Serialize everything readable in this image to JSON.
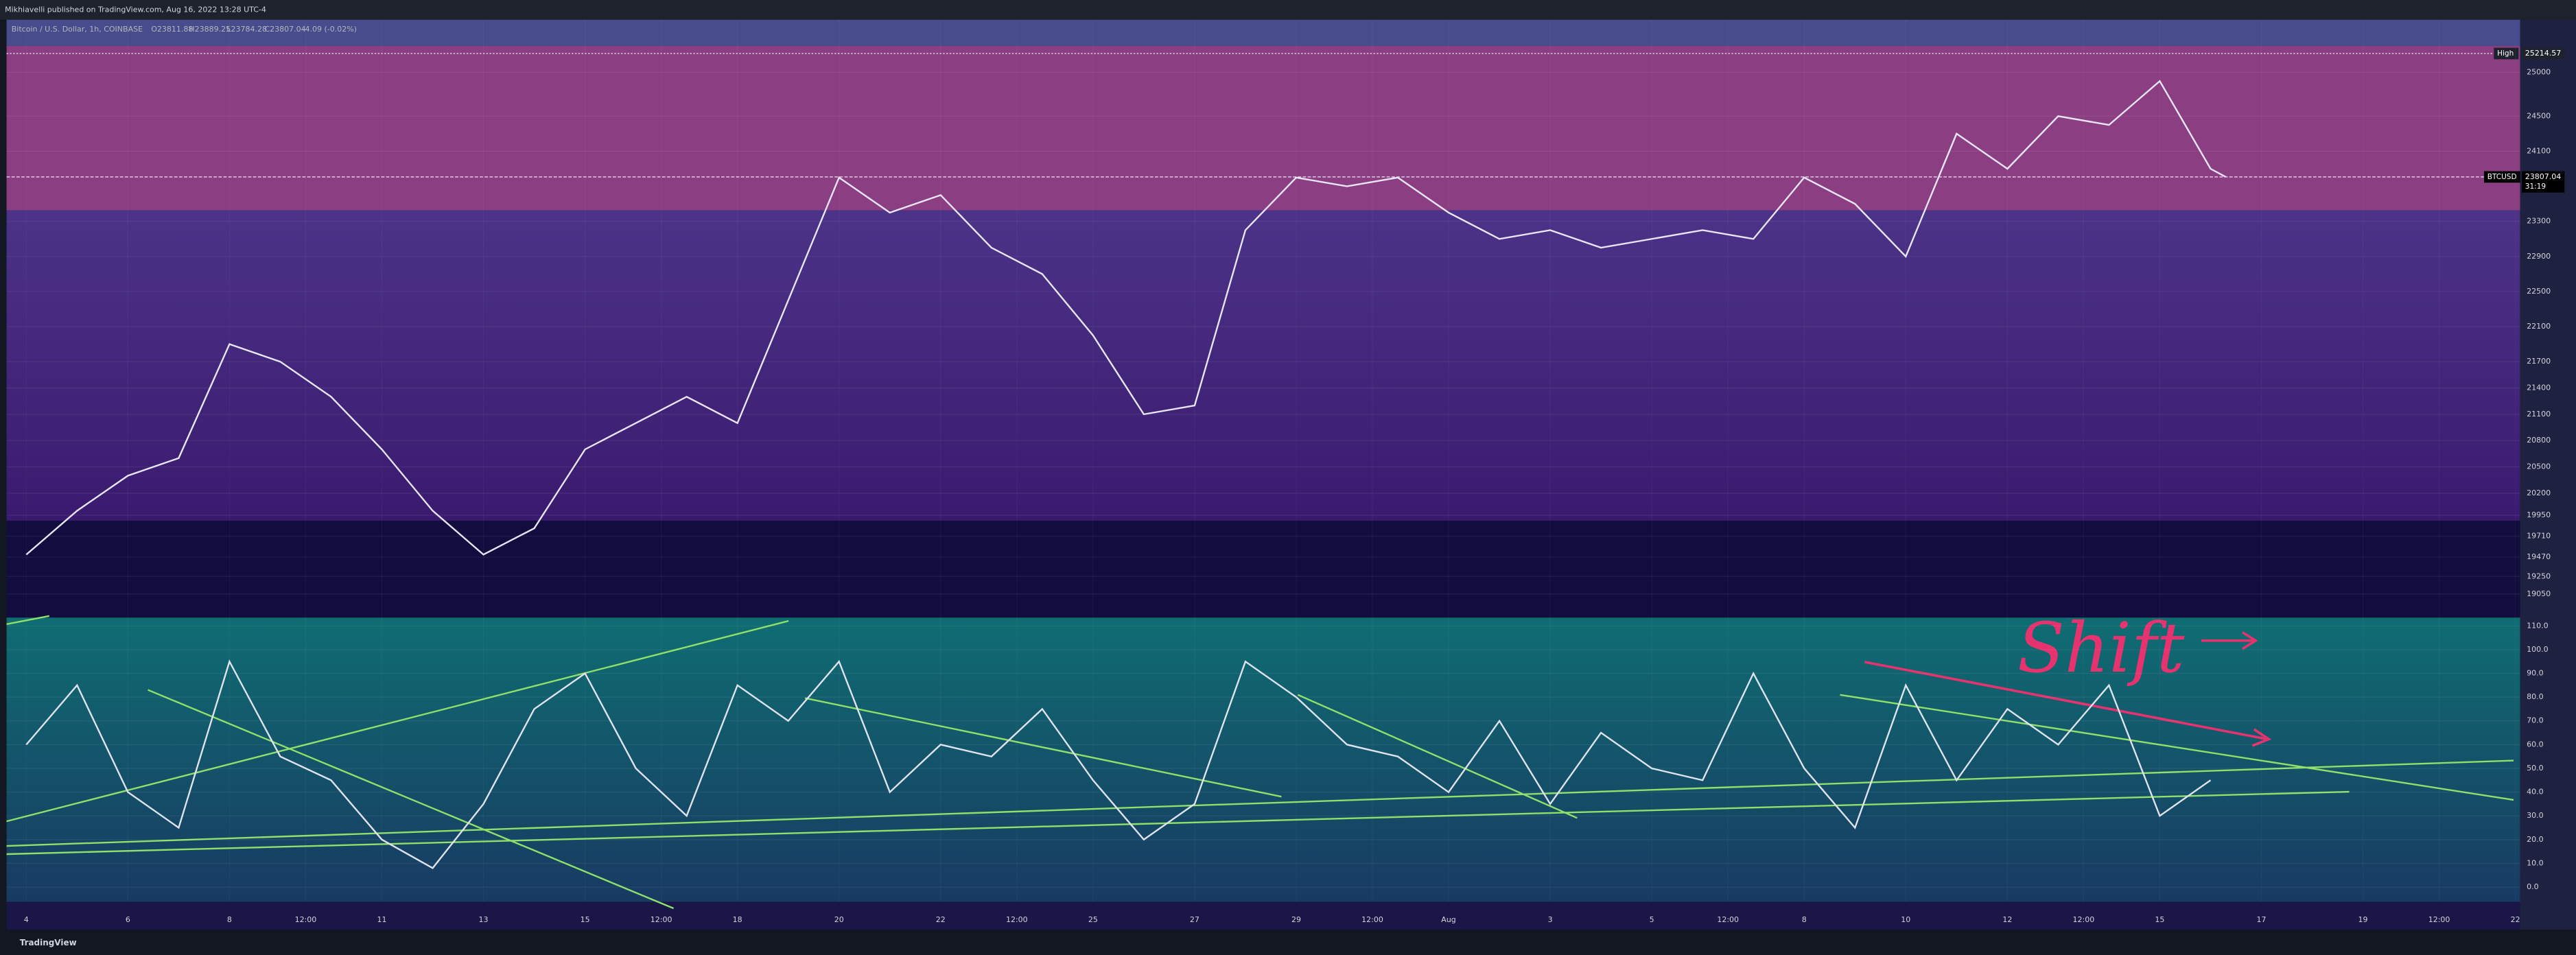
{
  "header": {
    "text": "Mikhiavelli published on TradingView.com, Aug 16, 2022 13:28 UTC-4"
  },
  "legend": {
    "symbol": "Bitcoin / U.S. Dollar, 1h, COINBASE",
    "open": "O23811.88",
    "high": "H23889.25",
    "low": "L23784.28",
    "close": "C23807.04",
    "change": "-4.09 (-0.02%)"
  },
  "annotation": "Shift",
  "footer": "TradingView",
  "chart_data": [
    {
      "type": "line",
      "series": [
        {
          "name": "BTCUSD",
          "color": "#e8e6f5",
          "x": [
            0,
            1,
            2,
            3,
            4,
            5,
            6,
            7,
            8,
            9,
            10,
            11,
            12,
            13,
            14,
            15,
            16,
            17,
            18,
            19,
            20,
            21,
            22,
            23,
            24,
            25,
            26,
            27,
            28,
            29,
            30,
            31,
            32,
            33,
            34,
            35,
            36,
            37,
            38,
            39,
            40,
            41,
            42,
            43,
            43.3
          ],
          "values": [
            19500,
            20000,
            20400,
            20600,
            21900,
            21700,
            21300,
            20700,
            20000,
            19500,
            19800,
            20700,
            21000,
            21300,
            21000,
            22400,
            23800,
            23400,
            23600,
            23000,
            22700,
            22000,
            21100,
            21200,
            23200,
            23800,
            23700,
            23800,
            23400,
            23100,
            23200,
            23000,
            23100,
            23200,
            23100,
            23800,
            23500,
            22900,
            24300,
            23900,
            24500,
            24400,
            24900,
            23900,
            23807.04
          ]
        }
      ],
      "high": {
        "label": "High",
        "value": 25214.57
      },
      "last": {
        "value": 23807.04,
        "countdown": "31:19"
      },
      "ylim": [
        18800,
        25600
      ],
      "yticks": [
        25000,
        24500,
        24100,
        23300,
        22900,
        22500,
        22100,
        21700,
        21400,
        21100,
        20800,
        20500,
        20200,
        19950,
        19710,
        19470,
        19250,
        19050
      ],
      "xlim": [
        -0.5,
        50
      ],
      "xticks": [
        {
          "value": 0,
          "label": "4"
        },
        {
          "value": 2,
          "label": "6"
        },
        {
          "value": 4,
          "label": "8"
        },
        {
          "value": 5.5,
          "label": "12:00"
        },
        {
          "value": 7,
          "label": "11"
        },
        {
          "value": 9,
          "label": "13"
        },
        {
          "value": 11,
          "label": "15"
        },
        {
          "value": 12.5,
          "label": "12:00"
        },
        {
          "value": 14,
          "label": "18"
        },
        {
          "value": 16,
          "label": "20"
        },
        {
          "value": 18,
          "label": "22"
        },
        {
          "value": 19.5,
          "label": "12:00"
        },
        {
          "value": 21,
          "label": "25"
        },
        {
          "value": 23,
          "label": "27"
        },
        {
          "value": 25,
          "label": "29"
        },
        {
          "value": 26.5,
          "label": "12:00"
        },
        {
          "value": 28,
          "label": "Aug"
        },
        {
          "value": 30,
          "label": "3"
        },
        {
          "value": 32,
          "label": "5"
        },
        {
          "value": 33.5,
          "label": "12:00"
        },
        {
          "value": 35,
          "label": "8"
        },
        {
          "value": 37,
          "label": "10"
        },
        {
          "value": 39,
          "label": "12"
        },
        {
          "value": 40.5,
          "label": "12:00"
        },
        {
          "value": 42,
          "label": "15"
        },
        {
          "value": 44,
          "label": "17"
        },
        {
          "value": 46,
          "label": "19"
        },
        {
          "value": 47.5,
          "label": "12:00"
        },
        {
          "value": 49,
          "label": "22"
        }
      ]
    },
    {
      "type": "line",
      "series": [
        {
          "color": "#dfe3ee",
          "x": [
            0,
            1,
            2,
            3,
            4,
            5,
            6,
            7,
            8,
            9,
            10,
            11,
            12,
            13,
            14,
            15,
            16,
            17,
            18,
            19,
            20,
            21,
            22,
            23,
            24,
            25,
            26,
            27,
            28,
            29,
            30,
            31,
            32,
            33,
            34,
            35,
            36,
            37,
            38,
            39,
            40,
            41,
            42,
            43
          ],
          "values": [
            60,
            85,
            40,
            25,
            95,
            55,
            45,
            20,
            8,
            35,
            75,
            90,
            50,
            30,
            85,
            70,
            95,
            40,
            60,
            55,
            75,
            45,
            20,
            35,
            95,
            80,
            60,
            55,
            40,
            70,
            35,
            65,
            50,
            45,
            90,
            50,
            25,
            85,
            45,
            75,
            60,
            85,
            30,
            45
          ]
        }
      ],
      "ylim": [
        -5.5,
        112.8
      ],
      "yticks": [
        {
          "value": 110,
          "label": "110.0"
        },
        {
          "value": 100,
          "label": "100.0"
        },
        {
          "value": 90,
          "label": "90.0"
        },
        {
          "value": 80,
          "label": "80.0"
        },
        {
          "value": 70,
          "label": "70.0"
        },
        {
          "value": 60,
          "label": "60.0"
        },
        {
          "value": 50,
          "label": "50.0"
        },
        {
          "value": 40,
          "label": "40.0"
        },
        {
          "value": 30,
          "label": "30.0"
        },
        {
          "value": 20,
          "label": "20.0"
        },
        {
          "value": 10,
          "label": "10.0"
        },
        {
          "value": 0,
          "label": "0.0"
        }
      ]
    }
  ]
}
